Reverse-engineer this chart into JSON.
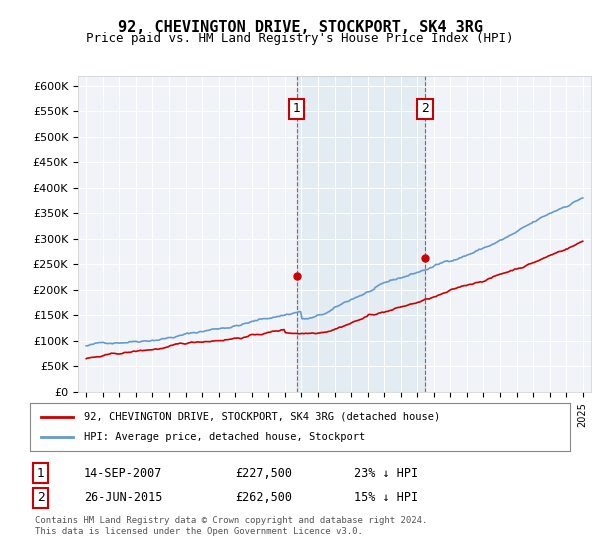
{
  "title": "92, CHEVINGTON DRIVE, STOCKPORT, SK4 3RG",
  "subtitle": "Price paid vs. HM Land Registry's House Price Index (HPI)",
  "legend_line1": "92, CHEVINGTON DRIVE, STOCKPORT, SK4 3RG (detached house)",
  "legend_line2": "HPI: Average price, detached house, Stockport",
  "annotation1_label": "1",
  "annotation1_date": "14-SEP-2007",
  "annotation1_price": "£227,500",
  "annotation1_hpi": "23% ↓ HPI",
  "annotation2_label": "2",
  "annotation2_date": "26-JUN-2015",
  "annotation2_price": "£262,500",
  "annotation2_hpi": "15% ↓ HPI",
  "footer": "Contains HM Land Registry data © Crown copyright and database right 2024.\nThis data is licensed under the Open Government Licence v3.0.",
  "hpi_color": "#6699cc",
  "price_color": "#cc0000",
  "annotation_color": "#cc0000",
  "background_shading": "#ddeeff",
  "ylim": [
    0,
    620000
  ],
  "yticks": [
    0,
    50000,
    100000,
    150000,
    200000,
    250000,
    300000,
    350000,
    400000,
    450000,
    500000,
    550000,
    600000
  ],
  "year_start": 1995,
  "year_end": 2025,
  "sale1_year": 2007.71,
  "sale1_price": 227500,
  "sale2_year": 2015.48,
  "sale2_price": 262500
}
